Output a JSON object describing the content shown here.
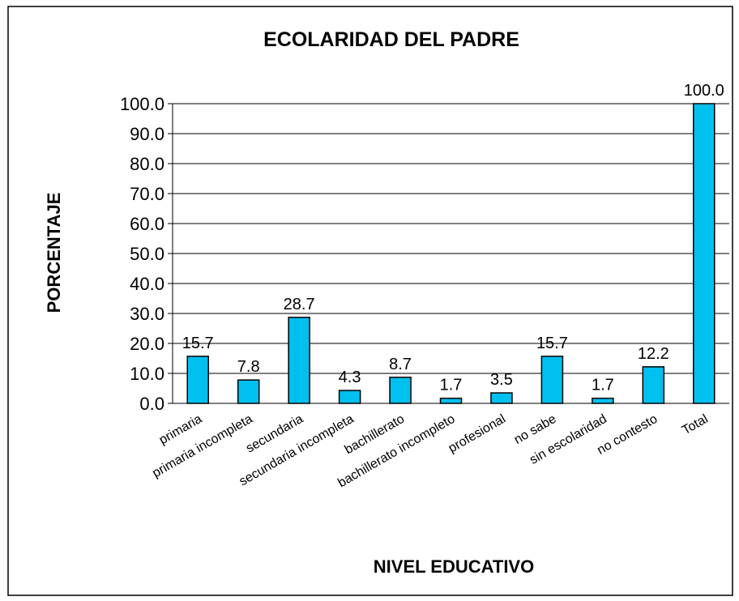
{
  "chart_data": {
    "type": "bar",
    "title": "ECOLARIDAD DEL PADRE",
    "xlabel": "NIVEL EDUCATIVO",
    "ylabel": "PORCENTAJE",
    "categories": [
      "primaria",
      "primaria incompleta",
      "secundaria",
      "secundaria incompleta",
      "bachillerato",
      "bachillerato incompleto",
      "profesional",
      "no sabe",
      "sin escolaridad",
      "no contesto",
      "Total"
    ],
    "values": [
      15.7,
      7.8,
      28.7,
      4.3,
      8.7,
      1.7,
      3.5,
      15.7,
      1.7,
      12.2,
      100
    ],
    "value_labels": [
      "15.7",
      "7.8",
      "28.7",
      "4.3",
      "8.7",
      "1.7",
      "3.5",
      "15.7",
      "1.7",
      "12.2",
      "100.0"
    ],
    "color": "#00c0f0",
    "ylim": [
      0,
      100
    ],
    "yticks": [
      {
        "value": 0,
        "label": "0.0"
      },
      {
        "value": 10,
        "label": "10.0"
      },
      {
        "value": 20,
        "label": "20.0"
      },
      {
        "value": 30,
        "label": "30.0"
      },
      {
        "value": 40,
        "label": "40.0"
      },
      {
        "value": 50,
        "label": "50.0"
      },
      {
        "value": 60,
        "label": "60.0"
      },
      {
        "value": 70,
        "label": "70.0"
      },
      {
        "value": 80,
        "label": "80.0"
      },
      {
        "value": 90,
        "label": "90.0"
      },
      {
        "value": 100,
        "label": "100.0"
      }
    ],
    "grid": true
  }
}
